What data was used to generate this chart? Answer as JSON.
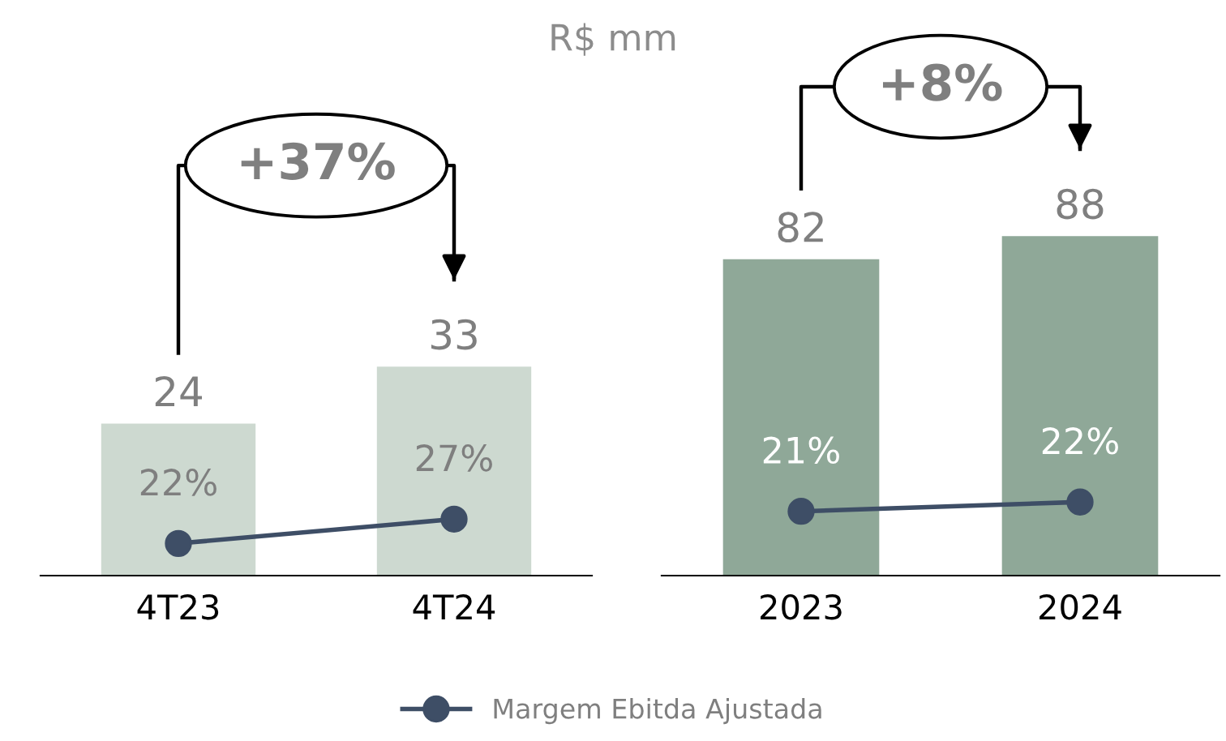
{
  "chart_data": [
    {
      "type": "bar",
      "title": "R$ mm",
      "categories": [
        "4T23",
        "4T24"
      ],
      "tick_labels": "x",
      "data_labels": true,
      "legend": "bottom",
      "marker": "circle",
      "series": [
        {
          "name": null,
          "color": "#cdd9d0",
          "values": [
            24,
            33
          ]
        },
        {
          "name": "Margem Ebitda Ajustada",
          "type": "line",
          "axis": "y2",
          "color": "#3e4e66",
          "values": [
            22,
            27
          ],
          "value_labels": [
            "22%",
            "27%"
          ]
        }
      ],
      "annotations": [
        "+37%"
      ]
    },
    {
      "type": "bar",
      "categories": [
        "2023",
        "2024"
      ],
      "tick_labels": "x",
      "data_labels": true,
      "marker": "circle",
      "series": [
        {
          "name": null,
          "color": "#8fa898",
          "values": [
            82,
            88
          ]
        },
        {
          "name": "Margem Ebitda Ajustada",
          "type": "line",
          "axis": "y2",
          "color": "#3e4e66",
          "values": [
            21,
            22
          ],
          "value_labels": [
            "21%",
            "22%"
          ]
        }
      ],
      "annotations": [
        "+8%"
      ]
    }
  ]
}
